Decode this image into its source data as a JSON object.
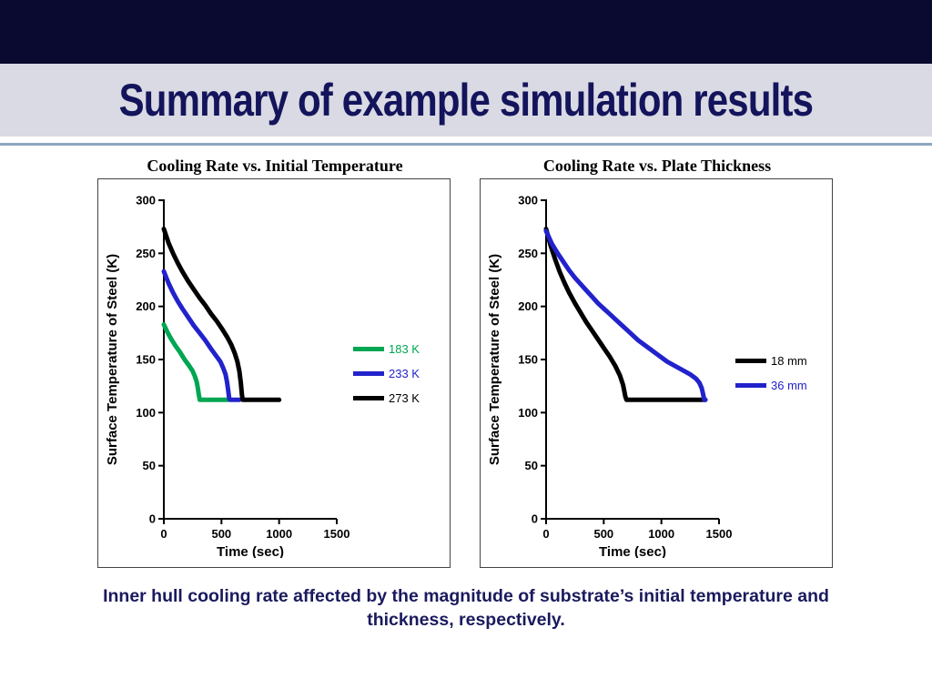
{
  "slide": {
    "title": "Summary of example simulation results",
    "caption": "Inner hull cooling rate affected by the magnitude of substrate’s initial temperature and thickness, respectively."
  },
  "colors": {
    "top_bar_color": "#0a0a30",
    "band_color": "#d9dae3",
    "title_color": "#14145c",
    "divider_color": "#8ca6bf",
    "caption_color": "#1a1a5e",
    "series_green": "#00a651",
    "series_blue": "#2222cc",
    "series_black": "#000000"
  },
  "chart_data": [
    {
      "type": "line",
      "title": "Cooling Rate vs. Initial Temperature",
      "xlabel": "Time (sec)",
      "ylabel": "Surface Temperature of Steel (K)",
      "xlim": [
        0,
        1500
      ],
      "ylim": [
        0,
        300
      ],
      "xticks": [
        0,
        500,
        1000,
        1500
      ],
      "yticks": [
        0,
        50,
        100,
        150,
        200,
        250,
        300
      ],
      "grid": false,
      "legend_position": "right",
      "series": [
        {
          "name": "183 K",
          "color": "#00a651",
          "points": [
            [
              0,
              183
            ],
            [
              30,
              176
            ],
            [
              60,
              170
            ],
            [
              100,
              163
            ],
            [
              140,
              157
            ],
            [
              180,
              150
            ],
            [
              220,
              144
            ],
            [
              250,
              139
            ],
            [
              270,
              134
            ],
            [
              285,
              129
            ],
            [
              295,
              123
            ],
            [
              305,
              116
            ],
            [
              312,
              112
            ],
            [
              560,
              112
            ]
          ]
        },
        {
          "name": "233 K",
          "color": "#2222cc",
          "points": [
            [
              0,
              233
            ],
            [
              40,
              222
            ],
            [
              80,
              213
            ],
            [
              120,
              205
            ],
            [
              160,
              198
            ],
            [
              210,
              190
            ],
            [
              260,
              182
            ],
            [
              310,
              175
            ],
            [
              360,
              168
            ],
            [
              410,
              160
            ],
            [
              450,
              154
            ],
            [
              490,
              148
            ],
            [
              515,
              142
            ],
            [
              535,
              136
            ],
            [
              548,
              129
            ],
            [
              558,
              121
            ],
            [
              568,
              113
            ],
            [
              575,
              112
            ],
            [
              655,
              112
            ]
          ]
        },
        {
          "name": "273 K",
          "color": "#000000",
          "points": [
            [
              0,
              273
            ],
            [
              40,
              260
            ],
            [
              80,
              250
            ],
            [
              120,
              241
            ],
            [
              160,
              233
            ],
            [
              210,
              224
            ],
            [
              260,
              216
            ],
            [
              310,
              208
            ],
            [
              360,
              201
            ],
            [
              410,
              193
            ],
            [
              460,
              186
            ],
            [
              510,
              178
            ],
            [
              550,
              171
            ],
            [
              585,
              164
            ],
            [
              615,
              156
            ],
            [
              638,
              148
            ],
            [
              655,
              139
            ],
            [
              668,
              128
            ],
            [
              678,
              116
            ],
            [
              685,
              112
            ],
            [
              1000,
              112
            ]
          ]
        }
      ]
    },
    {
      "type": "line",
      "title": "Cooling Rate vs. Plate Thickness",
      "xlabel": "Time (sec)",
      "ylabel": "Surface Temperature of Steel (K)",
      "xlim": [
        0,
        1500
      ],
      "ylim": [
        0,
        300
      ],
      "xticks": [
        0,
        500,
        1000,
        1500
      ],
      "yticks": [
        0,
        50,
        100,
        150,
        200,
        250,
        300
      ],
      "grid": false,
      "legend_position": "right",
      "series": [
        {
          "name": "18 mm",
          "color": "#000000",
          "points": [
            [
              0,
              273
            ],
            [
              40,
              257
            ],
            [
              80,
              244
            ],
            [
              120,
              232
            ],
            [
              160,
              222
            ],
            [
              200,
              213
            ],
            [
              250,
              203
            ],
            [
              300,
              194
            ],
            [
              350,
              185
            ],
            [
              400,
              177
            ],
            [
              450,
              169
            ],
            [
              500,
              161
            ],
            [
              550,
              153
            ],
            [
              600,
              144
            ],
            [
              640,
              135
            ],
            [
              668,
              126
            ],
            [
              688,
              115
            ],
            [
              698,
              112
            ],
            [
              1380,
              112
            ]
          ]
        },
        {
          "name": "36 mm",
          "color": "#2222cc",
          "points": [
            [
              0,
              271
            ],
            [
              50,
              259
            ],
            [
              100,
              250
            ],
            [
              150,
              242
            ],
            [
              200,
              234
            ],
            [
              250,
              227
            ],
            [
              300,
              221
            ],
            [
              350,
              215
            ],
            [
              400,
              209
            ],
            [
              450,
              203
            ],
            [
              500,
              198
            ],
            [
              550,
              193
            ],
            [
              600,
              188
            ],
            [
              650,
              183
            ],
            [
              700,
              178
            ],
            [
              750,
              173
            ],
            [
              800,
              168
            ],
            [
              850,
              164
            ],
            [
              900,
              160
            ],
            [
              950,
              156
            ],
            [
              1000,
              152
            ],
            [
              1050,
              148
            ],
            [
              1100,
              145
            ],
            [
              1150,
              142
            ],
            [
              1200,
              139
            ],
            [
              1250,
              136
            ],
            [
              1300,
              132
            ],
            [
              1330,
              128
            ],
            [
              1350,
              123
            ],
            [
              1363,
              117
            ],
            [
              1372,
              112
            ],
            [
              1382,
              112
            ]
          ]
        }
      ]
    }
  ]
}
